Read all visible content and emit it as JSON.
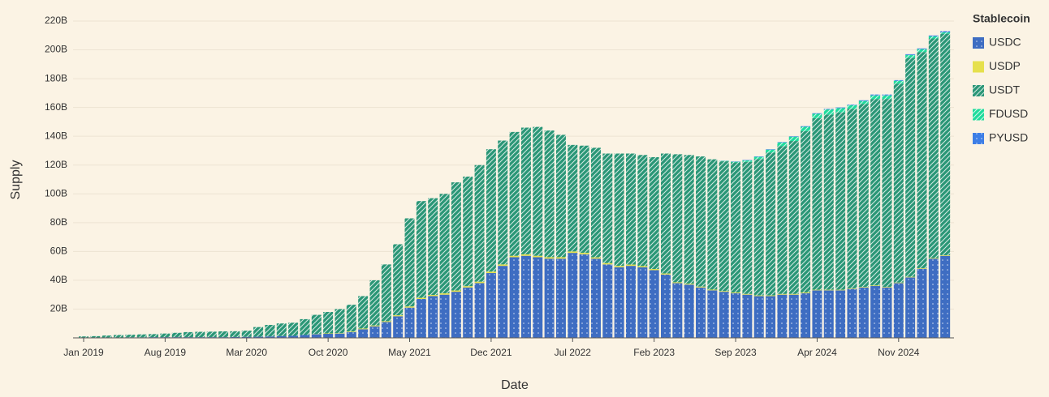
{
  "chart_data": {
    "type": "stacked_bar",
    "x_label": "Date",
    "y_label": "Supply",
    "legend_title": "Stablecoin",
    "legend": "right",
    "grid": true,
    "categories": [
      "Jan 2019",
      null,
      null,
      null,
      null,
      null,
      null,
      "Aug 2019",
      null,
      null,
      null,
      null,
      null,
      null,
      "Mar 2020",
      null,
      null,
      null,
      null,
      null,
      null,
      "Oct 2020",
      null,
      null,
      null,
      null,
      null,
      null,
      "May 2021",
      null,
      null,
      null,
      null,
      null,
      null,
      "Dec 2021",
      null,
      null,
      null,
      null,
      null,
      null,
      "Jul 2022",
      null,
      null,
      null,
      null,
      null,
      null,
      "Feb 2023",
      null,
      null,
      null,
      null,
      null,
      null,
      "Sep 2023",
      null,
      null,
      null,
      null,
      null,
      null,
      "Apr 2024",
      null,
      null,
      null,
      null,
      null,
      null,
      "Nov 2024",
      null,
      null,
      null,
      null
    ],
    "ylim": [
      0,
      220
    ],
    "yticks": [
      {
        "value": 20,
        "label": "20B"
      },
      {
        "value": 40,
        "label": "40B"
      },
      {
        "value": 60,
        "label": "60B"
      },
      {
        "value": 80,
        "label": "80B"
      },
      {
        "value": 100,
        "label": "100B"
      },
      {
        "value": 120,
        "label": "120B"
      },
      {
        "value": 140,
        "label": "140B"
      },
      {
        "value": 160,
        "label": "160B"
      },
      {
        "value": 180,
        "label": "180B"
      },
      {
        "value": 200,
        "label": "200B"
      },
      {
        "value": 220,
        "label": "220B"
      }
    ],
    "series": [
      {
        "name": "USDC",
        "color": "#3e6dc2",
        "pattern": "dots",
        "values": [
          0.3,
          0.3,
          0.3,
          0.3,
          0.4,
          0.4,
          0.5,
          0.5,
          0.5,
          0.5,
          0.5,
          0.5,
          0.5,
          0.6,
          0.7,
          0.8,
          1.0,
          1.2,
          1.4,
          2.0,
          2.5,
          2.8,
          3.0,
          4.0,
          6,
          8,
          11,
          15,
          21,
          27,
          29,
          30,
          32,
          35,
          38,
          45,
          50,
          56,
          57,
          56,
          55,
          55,
          59,
          58,
          55,
          51,
          49,
          50,
          49,
          47,
          44,
          38,
          37,
          35,
          33,
          32,
          31,
          30,
          29,
          29,
          30,
          30,
          31,
          33,
          33,
          33,
          34,
          35,
          36,
          35,
          38,
          42,
          48,
          55,
          57
        ]
      },
      {
        "name": "USDP",
        "color": "#e6e04c",
        "pattern": "none",
        "values": [
          0,
          0,
          0,
          0,
          0,
          0,
          0,
          0,
          0,
          0,
          0,
          0,
          0,
          0,
          0,
          0,
          0,
          0,
          0,
          0,
          0.2,
          0.3,
          0.3,
          0.4,
          0.5,
          0.6,
          0.6,
          0.7,
          0.8,
          0.8,
          0.8,
          0.9,
          0.9,
          0.9,
          1.0,
          1.0,
          1.0,
          1.0,
          1.0,
          1.0,
          1.0,
          1.0,
          1.0,
          1.0,
          0.9,
          0.9,
          0.9,
          0.9,
          0.8,
          0.8,
          0.7,
          0.6,
          0.6,
          0.6,
          0.5,
          0.5,
          0.5,
          0.5,
          0.5,
          0.5,
          0.5,
          0.5,
          0.5,
          0.4,
          0.4,
          0.4,
          0.4,
          0.4,
          0.4,
          0.4,
          0.4,
          0.4,
          0.4,
          0.4,
          0.4
        ]
      },
      {
        "name": "USDT",
        "color": "#2a9676",
        "pattern": "hatch",
        "values": [
          0.7,
          0.9,
          1.3,
          1.7,
          1.8,
          2.0,
          2.1,
          2.5,
          3.0,
          3.5,
          3.7,
          3.8,
          4.0,
          4.0,
          4.3,
          6.7,
          8.0,
          8.8,
          9.1,
          11.0,
          13.3,
          14.9,
          16.7,
          18.6,
          22.5,
          31.4,
          39.4,
          49.3,
          61.2,
          67.2,
          67.2,
          69.1,
          75.1,
          76.1,
          81,
          85,
          86,
          86,
          88,
          89.5,
          88,
          85,
          74,
          74.5,
          76.1,
          76.1,
          78.1,
          77.1,
          77.2,
          77.7,
          83.3,
          88.9,
          89.4,
          90.4,
          90.5,
          90.1,
          90.3,
          91.7,
          94.7,
          99.2,
          102.7,
          106.2,
          112.1,
          119.2,
          121.7,
          123.2,
          124.7,
          127.1,
          129.5,
          130.5,
          138.1,
          152.1,
          150.1,
          152.5,
          153.8
        ]
      },
      {
        "name": "FDUSD",
        "color": "#1fdc9c",
        "pattern": "hatch",
        "values": [
          0,
          0,
          0,
          0,
          0,
          0,
          0,
          0,
          0,
          0,
          0,
          0,
          0,
          0,
          0,
          0,
          0,
          0,
          0,
          0,
          0,
          0,
          0,
          0,
          0,
          0,
          0,
          0,
          0,
          0,
          0,
          0,
          0,
          0,
          0,
          0,
          0,
          0,
          0,
          0,
          0,
          0,
          0,
          0,
          0,
          0,
          0,
          0,
          0,
          0,
          0,
          0,
          0,
          0,
          0,
          0.3,
          0.5,
          1,
          1.5,
          2,
          2.5,
          3,
          3,
          3,
          3.5,
          3,
          2.5,
          2,
          2.5,
          2.5,
          2,
          2,
          2,
          1.5,
          1
        ]
      },
      {
        "name": "PYUSD",
        "color": "#3d7ee6",
        "pattern": "dots",
        "values": [
          0,
          0,
          0,
          0,
          0,
          0,
          0,
          0,
          0,
          0,
          0,
          0,
          0,
          0,
          0,
          0,
          0,
          0,
          0,
          0,
          0,
          0,
          0,
          0,
          0,
          0,
          0,
          0,
          0,
          0,
          0,
          0,
          0,
          0,
          0,
          0,
          0,
          0,
          0,
          0,
          0,
          0,
          0,
          0,
          0,
          0,
          0,
          0,
          0,
          0,
          0,
          0,
          0,
          0,
          0,
          0.1,
          0.2,
          0.3,
          0.3,
          0.3,
          0.3,
          0.3,
          0.4,
          0.4,
          0.4,
          0.4,
          0.4,
          0.5,
          0.6,
          0.6,
          0.5,
          0.5,
          0.5,
          0.6,
          0.8
        ]
      }
    ]
  }
}
